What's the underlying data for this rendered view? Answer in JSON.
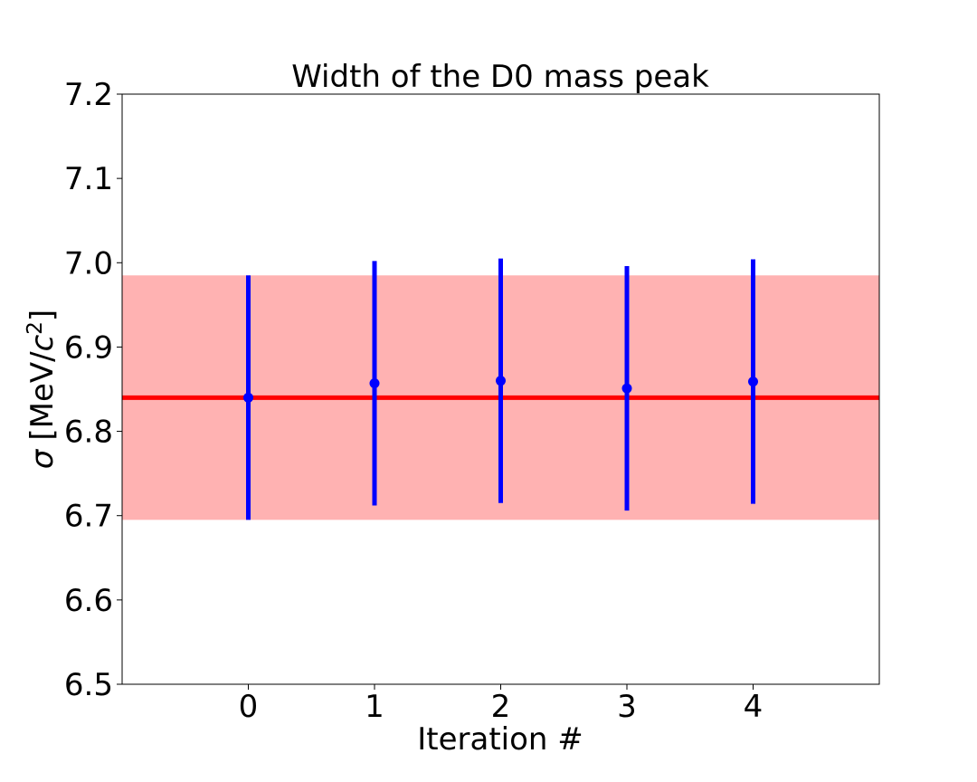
{
  "chart_data": {
    "type": "scatter",
    "title": "Width of the D0 mass peak",
    "xlabel": "Iteration #",
    "ylabel_symbol": "σ",
    "ylabel_unit_open": "[MeV/",
    "ylabel_unit_c": "c",
    "ylabel_unit_exp": "2",
    "ylabel_unit_close": "]",
    "xlim": [
      -1,
      5
    ],
    "ylim": [
      6.5,
      7.2
    ],
    "x_ticks": [
      0,
      1,
      2,
      3,
      4
    ],
    "x_tick_labels": [
      "0",
      "1",
      "2",
      "3",
      "4"
    ],
    "y_ticks": [
      6.5,
      6.6,
      6.7,
      6.8,
      6.9,
      7.0,
      7.1,
      7.2
    ],
    "y_tick_labels": [
      "6.5",
      "6.6",
      "6.7",
      "6.8",
      "6.9",
      "7.0",
      "7.1",
      "7.2"
    ],
    "grid": false,
    "series": [
      {
        "x": [
          0,
          1,
          2,
          3,
          4
        ],
        "y": [
          6.84,
          6.857,
          6.86,
          6.851,
          6.859
        ],
        "yerr": [
          0.145,
          0.145,
          0.145,
          0.145,
          0.145
        ],
        "color": "#0000ff"
      }
    ],
    "reference_line": {
      "y": 6.84,
      "color": "#ff0000"
    },
    "reference_band": {
      "y_low": 6.695,
      "y_high": 6.985,
      "color": "#ff0000",
      "alpha": 0.3
    }
  }
}
